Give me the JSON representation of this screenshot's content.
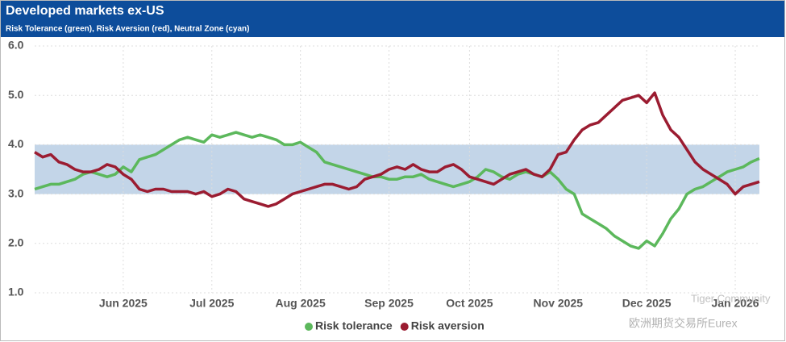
{
  "chart_data": {
    "type": "line",
    "title": "Developed markets ex-US",
    "subtitle": "Risk Tolerance (green), Risk Aversion (red), Neutral Zone (cyan)",
    "categories": [
      null,
      null,
      null,
      null,
      null,
      null,
      null,
      null,
      null,
      null,
      null,
      "Jun 2025",
      null,
      null,
      null,
      null,
      null,
      null,
      null,
      null,
      null,
      null,
      "Jul 2025",
      null,
      null,
      null,
      null,
      null,
      null,
      null,
      null,
      null,
      null,
      "Aug 2025",
      null,
      null,
      null,
      null,
      null,
      null,
      null,
      null,
      null,
      null,
      "Sep 2025",
      null,
      null,
      null,
      null,
      null,
      null,
      null,
      null,
      null,
      "Oct 2025",
      null,
      null,
      null,
      null,
      null,
      null,
      null,
      null,
      null,
      null,
      "Nov 2025",
      null,
      null,
      null,
      null,
      null,
      null,
      null,
      null,
      null,
      null,
      "Dec 2025",
      null,
      null,
      null,
      null,
      null,
      null,
      null,
      null,
      null,
      null,
      "Jan 2026",
      null,
      null,
      null
    ],
    "series": [
      {
        "name": "Risk tolerance",
        "color": "#5cb85c",
        "values": [
          3.1,
          3.15,
          3.2,
          3.2,
          3.25,
          3.3,
          3.4,
          3.45,
          3.4,
          3.35,
          3.4,
          3.55,
          3.45,
          3.7,
          3.75,
          3.8,
          3.9,
          4.0,
          4.1,
          4.15,
          4.1,
          4.05,
          4.2,
          4.15,
          4.2,
          4.25,
          4.2,
          4.15,
          4.2,
          4.15,
          4.1,
          4.0,
          4.0,
          4.05,
          3.95,
          3.85,
          3.65,
          3.6,
          3.55,
          3.5,
          3.45,
          3.4,
          3.35,
          3.35,
          3.3,
          3.3,
          3.35,
          3.35,
          3.4,
          3.3,
          3.25,
          3.2,
          3.15,
          3.2,
          3.25,
          3.35,
          3.5,
          3.45,
          3.35,
          3.3,
          3.4,
          3.45,
          3.4,
          3.35,
          3.45,
          3.3,
          3.1,
          3.0,
          2.6,
          2.5,
          2.4,
          2.3,
          2.15,
          2.05,
          1.95,
          1.9,
          2.05,
          1.95,
          2.2,
          2.5,
          2.7,
          3.0,
          3.1,
          3.15,
          3.25,
          3.35,
          3.45,
          3.5,
          3.55,
          3.65,
          3.72
        ]
      },
      {
        "name": "Risk aversion",
        "color": "#9b1c31",
        "values": [
          3.85,
          3.75,
          3.8,
          3.65,
          3.6,
          3.5,
          3.45,
          3.45,
          3.5,
          3.6,
          3.55,
          3.4,
          3.3,
          3.1,
          3.05,
          3.1,
          3.1,
          3.05,
          3.05,
          3.05,
          3.0,
          3.05,
          2.95,
          3.0,
          3.1,
          3.05,
          2.9,
          2.85,
          2.8,
          2.75,
          2.8,
          2.9,
          3.0,
          3.05,
          3.1,
          3.15,
          3.2,
          3.2,
          3.15,
          3.1,
          3.15,
          3.3,
          3.35,
          3.4,
          3.5,
          3.55,
          3.5,
          3.6,
          3.5,
          3.45,
          3.45,
          3.55,
          3.6,
          3.5,
          3.35,
          3.3,
          3.25,
          3.2,
          3.3,
          3.4,
          3.45,
          3.5,
          3.4,
          3.35,
          3.5,
          3.8,
          3.85,
          4.1,
          4.3,
          4.4,
          4.45,
          4.6,
          4.75,
          4.9,
          4.95,
          5.0,
          4.85,
          5.05,
          4.6,
          4.3,
          4.15,
          3.9,
          3.65,
          3.5,
          3.4,
          3.3,
          3.2,
          3.0,
          3.15,
          3.2,
          3.25
        ]
      }
    ],
    "band": {
      "from": 3,
      "to": 4,
      "color": "#c3d5e8"
    },
    "ylim": [
      1,
      6
    ],
    "yticks": [
      {
        "value": 1,
        "label": "1.0"
      },
      {
        "value": 2,
        "label": "2.0"
      },
      {
        "value": 3,
        "label": "3.0"
      },
      {
        "value": 4,
        "label": "4.0"
      },
      {
        "value": 5,
        "label": "5.0"
      },
      {
        "value": 6,
        "label": "6.0"
      }
    ],
    "grid": true,
    "legend": "bottom",
    "watermarks": [
      "Tiger Community",
      "欧洲期货交易所Eurex"
    ]
  }
}
